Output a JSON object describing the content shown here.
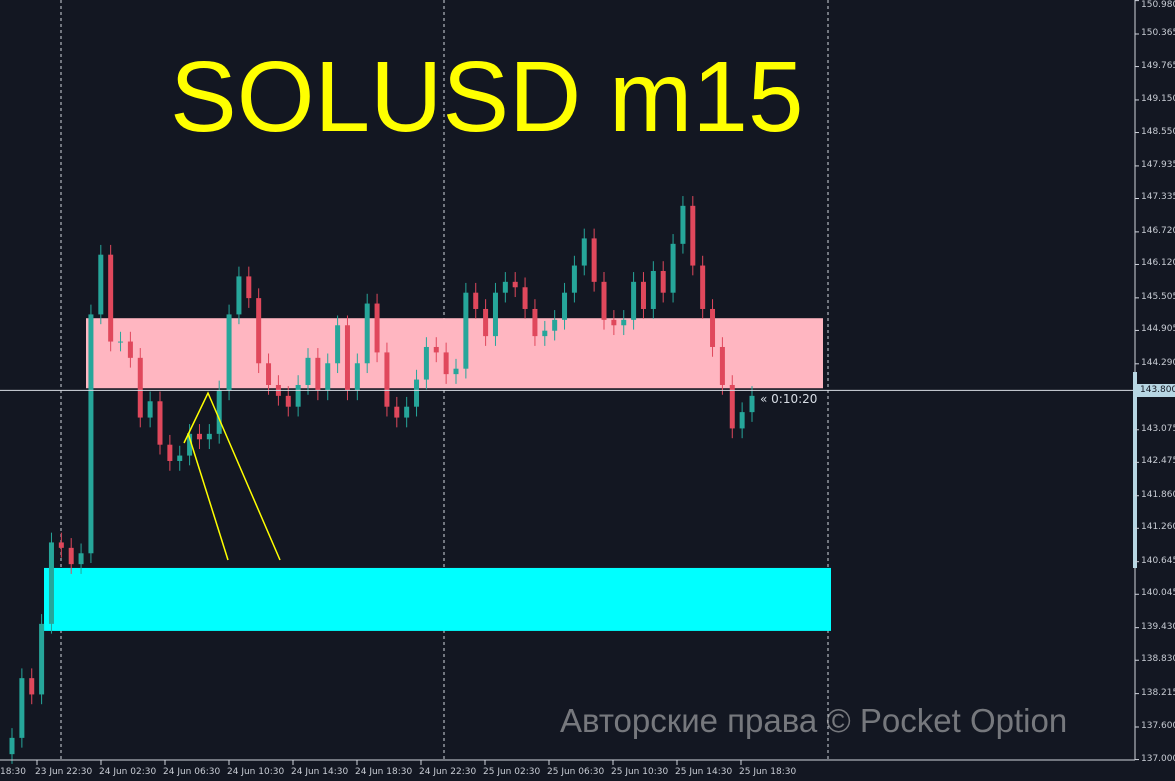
{
  "title": "SOLUSD m15",
  "watermark": "Авторские права © Pocket Option",
  "timer": "« 0:10:20",
  "current_price_label": "143.800",
  "colors": {
    "background": "#131722",
    "bull": "#26a69a",
    "bear": "#e0485c",
    "resistance_zone": "#ffb6c1",
    "support_zone": "#00ffff",
    "trendlines": "#ffff00",
    "title": "#ffff00"
  },
  "chart_data": {
    "type": "candlestick",
    "title": "SOLUSD m15",
    "ylim": [
      137.0,
      150.98
    ],
    "y_ticks": [
      "150.980",
      "150.365",
      "149.765",
      "149.150",
      "148.550",
      "147.935",
      "147.335",
      "146.720",
      "146.120",
      "145.505",
      "144.905",
      "144.290",
      "143.075",
      "142.475",
      "141.860",
      "141.260",
      "140.645",
      "140.045",
      "139.430",
      "138.830",
      "138.215",
      "137.600",
      "137.000"
    ],
    "x_ticks": [
      "18:30",
      "23 Jun 22:30",
      "24 Jun 02:30",
      "24 Jun 06:30",
      "24 Jun 10:30",
      "24 Jun 14:30",
      "24 Jun 18:30",
      "24 Jun 22:30",
      "25 Jun 02:30",
      "25 Jun 06:30",
      "25 Jun 10:30",
      "25 Jun 14:30",
      "25 Jun 18:30"
    ],
    "closes": [
      137.4,
      138.5,
      138.2,
      139.5,
      141.0,
      140.9,
      140.6,
      140.8,
      145.2,
      146.3,
      144.7,
      144.7,
      144.4,
      143.3,
      143.6,
      142.8,
      142.5,
      142.6,
      143.0,
      142.9,
      143.0,
      143.8,
      145.2,
      145.9,
      145.5,
      144.3,
      143.9,
      143.7,
      143.5,
      143.9,
      144.4,
      143.8,
      144.3,
      145.0,
      143.8,
      144.3,
      145.4,
      144.5,
      143.5,
      143.3,
      143.5,
      144.0,
      144.6,
      144.5,
      144.1,
      144.2,
      145.6,
      145.3,
      144.8,
      145.6,
      145.8,
      145.7,
      145.3,
      144.8,
      144.9,
      145.1,
      145.6,
      146.1,
      146.6,
      145.8,
      145.1,
      145.0,
      145.1,
      145.8,
      145.3,
      146.0,
      145.6,
      146.5,
      147.2,
      146.1,
      145.3,
      144.6,
      143.9,
      143.1,
      143.4,
      143.7
    ],
    "current_price": 143.8,
    "zones": [
      {
        "name": "resistance",
        "from": 143.84,
        "to": 145.13
      },
      {
        "name": "support",
        "from": 139.37,
        "to": 140.53
      }
    ],
    "trendlines": [
      [
        [
          "24 Jun 05:00",
          142.9
        ],
        [
          "24 Jun 06:30",
          143.8
        ],
        [
          "24 Jun 10:30",
          140.7
        ]
      ],
      [
        [
          "24 Jun 05:00",
          143.1
        ],
        [
          "24 Jun 07:30",
          140.7
        ]
      ]
    ]
  }
}
